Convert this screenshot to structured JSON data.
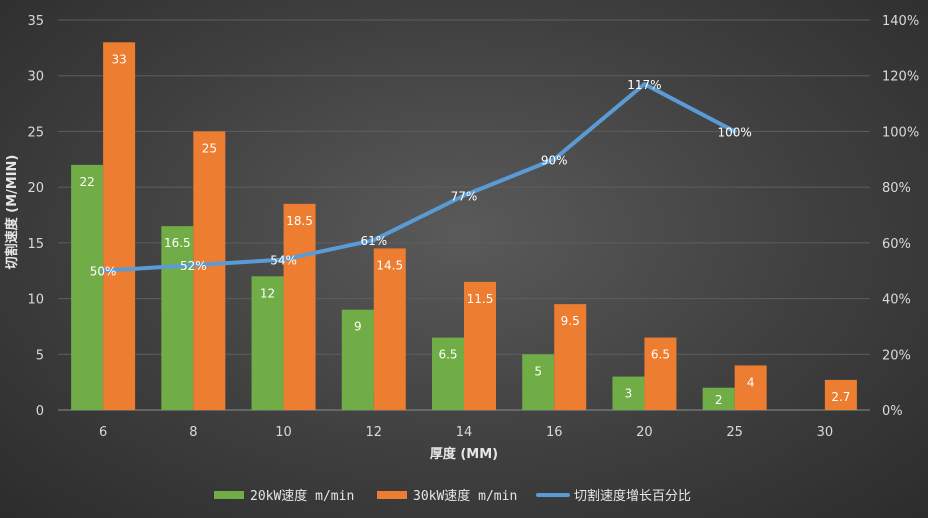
{
  "chart_data": {
    "type": "bar",
    "title": "",
    "xlabel": "厚度 (MM)",
    "ylabel": "切割速度 (M/MIN)",
    "categories": [
      "6",
      "8",
      "10",
      "12",
      "14",
      "16",
      "20",
      "25",
      "30"
    ],
    "ylim": [
      0,
      35
    ],
    "y_ticks": [
      0,
      5,
      10,
      15,
      20,
      25,
      30,
      35
    ],
    "y2lim": [
      0,
      140
    ],
    "y2_ticks": [
      "0%",
      "20%",
      "40%",
      "60%",
      "80%",
      "100%",
      "120%",
      "140%"
    ],
    "grid": true,
    "legend_position": "bottom",
    "series": [
      {
        "name": "20kW速度 m/min",
        "type": "bar",
        "color": "#70ad47",
        "values": [
          22,
          16.5,
          12,
          9,
          6.5,
          5,
          3,
          2,
          null
        ],
        "labels": [
          "22",
          "16.5",
          "12",
          "9",
          "6.5",
          "5",
          "3",
          "2",
          ""
        ]
      },
      {
        "name": "30kW速度 m/min",
        "type": "bar",
        "color": "#ed7d31",
        "values": [
          33,
          25,
          18.5,
          14.5,
          11.5,
          9.5,
          6.5,
          4,
          2.7
        ],
        "labels": [
          "33",
          "25",
          "18.5",
          "14.5",
          "11.5",
          "9.5",
          "6.5",
          "4",
          "2.7"
        ]
      },
      {
        "name": "切割速度增长百分比",
        "type": "line",
        "axis": "right",
        "color": "#5b9bd5",
        "values": [
          50,
          52,
          54,
          61,
          77,
          90,
          117,
          100,
          null
        ],
        "labels": [
          "50%",
          "52%",
          "54%",
          "61%",
          "77%",
          "90%",
          "117%",
          "100%",
          ""
        ]
      }
    ]
  }
}
